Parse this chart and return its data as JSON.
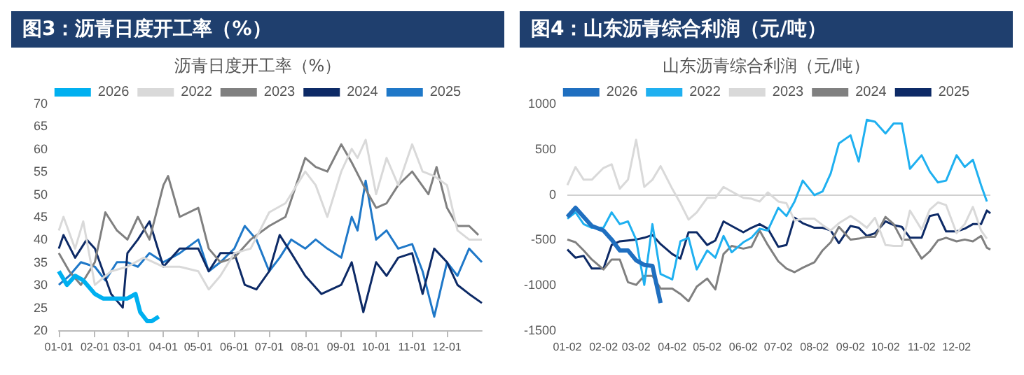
{
  "chart_data": [
    {
      "type": "line",
      "title": "图3：沥青日度开工率（%）",
      "subtitle": "沥青日度开工率（%）",
      "legend": "top",
      "grid": false,
      "marker": "none",
      "line_style": "solid",
      "xlim": [
        "--01-01",
        "--12-31"
      ],
      "xticks": [
        {
          "value": "--01-01",
          "label": "01-01"
        },
        {
          "value": "--02-01",
          "label": "02-01"
        },
        {
          "value": "--03-01",
          "label": "03-01"
        },
        {
          "value": "--04-01",
          "label": "04-01"
        },
        {
          "value": "--05-01",
          "label": "05-01"
        },
        {
          "value": "--06-01",
          "label": "06-01"
        },
        {
          "value": "--07-01",
          "label": "07-01"
        },
        {
          "value": "--08-01",
          "label": "08-01"
        },
        {
          "value": "--09-01",
          "label": "09-01"
        },
        {
          "value": "--10-01",
          "label": "10-01"
        },
        {
          "value": "--11-01",
          "label": "11-01"
        },
        {
          "value": "--12-01",
          "label": "12-01"
        }
      ],
      "ylim": [
        20,
        70
      ],
      "yticks": [
        20,
        25,
        30,
        35,
        40,
        45,
        50,
        55,
        60,
        65,
        70
      ],
      "series": [
        {
          "name": "2026",
          "color": "#00b0f0",
          "x": [
            "--01-01",
            "--01-08",
            "--01-15",
            "--01-22",
            "--02-01",
            "--02-08",
            "--02-15",
            "--02-22",
            "--03-01",
            "--03-08",
            "--03-12",
            "--03-18",
            "--03-22",
            "--03-28"
          ],
          "values": [
            33,
            30,
            32,
            31,
            28,
            27,
            27,
            27,
            27,
            28,
            24,
            22,
            22,
            23
          ]
        },
        {
          "name": "2022",
          "color": "#d9d9d9",
          "x": [
            "--01-01",
            "--01-05",
            "--01-15",
            "--01-22",
            "--02-01",
            "--02-15",
            "--03-01",
            "--03-15",
            "--04-01",
            "--04-15",
            "--05-01",
            "--05-10",
            "--05-20",
            "--06-01",
            "--06-15",
            "--07-01",
            "--07-15",
            "--08-01",
            "--08-10",
            "--08-20",
            "--09-01",
            "--09-10",
            "--09-15",
            "--09-22",
            "--10-01",
            "--10-10",
            "--10-20",
            "--11-01",
            "--11-10",
            "--11-20",
            "--12-01",
            "--12-10",
            "--12-20",
            "--12-31"
          ],
          "values": [
            42,
            45,
            38,
            44,
            30,
            33,
            34,
            36,
            34,
            34,
            33,
            29,
            32,
            37,
            38,
            46,
            48,
            55,
            52,
            45,
            55,
            60,
            58,
            62,
            50,
            58,
            52,
            61,
            55,
            54,
            52,
            42,
            40,
            40
          ]
        },
        {
          "name": "2023",
          "color": "#808080",
          "x": [
            "--01-01",
            "--01-10",
            "--01-20",
            "--02-01",
            "--02-10",
            "--02-20",
            "--03-01",
            "--03-10",
            "--03-20",
            "--04-01",
            "--04-05",
            "--04-15",
            "--05-01",
            "--05-10",
            "--05-20",
            "--06-01",
            "--06-15",
            "--07-01",
            "--07-15",
            "--08-01",
            "--08-10",
            "--08-20",
            "--09-01",
            "--09-10",
            "--09-20",
            "--10-01",
            "--10-10",
            "--10-20",
            "--11-01",
            "--11-15",
            "--11-22",
            "--12-01",
            "--12-10",
            "--12-20",
            "--12-28"
          ],
          "values": [
            37,
            33,
            30,
            35,
            46,
            42,
            40,
            45,
            40,
            52,
            54,
            45,
            47,
            38,
            35,
            36,
            40,
            43,
            45,
            58,
            56,
            55,
            61,
            57,
            52,
            47,
            48,
            52,
            55,
            50,
            56,
            47,
            43,
            43,
            41
          ]
        },
        {
          "name": "2024",
          "color": "#0d2a66",
          "x": [
            "--01-01",
            "--01-05",
            "--01-15",
            "--01-25",
            "--02-01",
            "--02-15",
            "--02-25",
            "--03-01",
            "--03-10",
            "--03-20",
            "--04-01",
            "--04-15",
            "--05-01",
            "--05-10",
            "--05-20",
            "--06-01",
            "--06-10",
            "--06-20",
            "--07-01",
            "--07-10",
            "--07-20",
            "--08-01",
            "--08-15",
            "--09-01",
            "--09-10",
            "--09-20",
            "--10-01",
            "--10-10",
            "--10-20",
            "--11-01",
            "--11-10",
            "--11-20",
            "--12-01",
            "--12-10",
            "--12-20",
            "--12-31"
          ],
          "values": [
            38,
            41,
            36,
            40,
            38,
            28,
            25,
            37,
            40,
            44,
            34,
            38,
            38,
            33,
            37,
            37,
            30,
            29,
            33,
            41,
            37,
            32,
            28,
            30,
            35,
            24,
            35,
            32,
            36,
            37,
            28,
            38,
            35,
            30,
            28,
            26
          ]
        },
        {
          "name": "2025",
          "color": "#1f78c8",
          "x": [
            "--01-01",
            "--01-10",
            "--01-20",
            "--02-01",
            "--02-10",
            "--02-20",
            "--03-01",
            "--03-10",
            "--03-20",
            "--04-01",
            "--04-15",
            "--05-01",
            "--05-10",
            "--05-20",
            "--06-01",
            "--06-10",
            "--06-20",
            "--07-01",
            "--07-10",
            "--07-20",
            "--08-01",
            "--08-10",
            "--08-20",
            "--09-01",
            "--09-10",
            "--09-15",
            "--09-22",
            "--10-01",
            "--10-10",
            "--10-20",
            "--11-01",
            "--11-10",
            "--11-20",
            "--12-01",
            "--12-10",
            "--12-20",
            "--12-31"
          ],
          "values": [
            30,
            32,
            35,
            34,
            31,
            35,
            35,
            34,
            37,
            35,
            37,
            40,
            33,
            35,
            38,
            43,
            40,
            33,
            36,
            40,
            38,
            40,
            38,
            36,
            45,
            42,
            53,
            40,
            42,
            38,
            39,
            33,
            23,
            35,
            32,
            38,
            35
          ]
        }
      ]
    },
    {
      "type": "line",
      "title": "图4：山东沥青综合利润（元/吨）",
      "subtitle": "山东沥青综合利润（元/吨）",
      "legend": "top",
      "grid": false,
      "marker": "none",
      "line_style": "solid",
      "xlim": [
        "--01-02",
        "--12-31"
      ],
      "xticks": [
        {
          "value": "--01-02",
          "label": "01-02"
        },
        {
          "value": "--02-02",
          "label": "02-02"
        },
        {
          "value": "--03-02",
          "label": "03-02"
        },
        {
          "value": "--04-02",
          "label": "04-02"
        },
        {
          "value": "--05-02",
          "label": "05-02"
        },
        {
          "value": "--06-02",
          "label": "06-02"
        },
        {
          "value": "--07-02",
          "label": "07-02"
        },
        {
          "value": "--08-02",
          "label": "08-02"
        },
        {
          "value": "--09-02",
          "label": "09-02"
        },
        {
          "value": "--10-02",
          "label": "10-02"
        },
        {
          "value": "--11-02",
          "label": "11-02"
        },
        {
          "value": "--12-02",
          "label": "12-02"
        }
      ],
      "ylim": [
        -1500,
        1000
      ],
      "yticks": [
        -1500,
        -1000,
        -500,
        0,
        500,
        1000
      ],
      "ref_lines": [
        {
          "axis": "y",
          "value": 0,
          "color": "#d0d0d0"
        }
      ],
      "series": [
        {
          "name": "2026",
          "color": "#1f6fc0",
          "x": [
            "--01-02",
            "--01-09",
            "--01-16",
            "--01-23",
            "--02-02",
            "--02-09",
            "--02-16",
            "--02-23",
            "--03-02",
            "--03-09",
            "--03-16",
            "--03-23"
          ],
          "values": [
            -250,
            -150,
            -250,
            -350,
            -400,
            -500,
            -620,
            -620,
            -730,
            -780,
            -790,
            -1200
          ]
        },
        {
          "name": "2022",
          "color": "#1fb0f0",
          "x": [
            "--01-02",
            "--01-09",
            "--01-16",
            "--01-23",
            "--02-02",
            "--02-09",
            "--02-16",
            "--02-23",
            "--03-02",
            "--03-09",
            "--03-16",
            "--03-23",
            "--04-02",
            "--04-09",
            "--04-16",
            "--04-23",
            "--05-02",
            "--05-09",
            "--05-16",
            "--05-23",
            "--06-02",
            "--06-09",
            "--06-16",
            "--06-23",
            "--07-02",
            "--07-09",
            "--07-16",
            "--07-23",
            "--08-02",
            "--08-09",
            "--08-16",
            "--08-23",
            "--09-02",
            "--09-09",
            "--09-16",
            "--09-23",
            "--10-02",
            "--10-09",
            "--10-16",
            "--10-23",
            "--11-02",
            "--11-09",
            "--11-16",
            "--11-23",
            "--12-02",
            "--12-09",
            "--12-16",
            "--12-23",
            "--12-28"
          ],
          "values": [
            -270,
            -200,
            -330,
            -370,
            -370,
            -200,
            -330,
            -300,
            -500,
            -1000,
            -330,
            -880,
            -940,
            -520,
            -480,
            -830,
            -620,
            -700,
            -460,
            -640,
            -530,
            -480,
            -380,
            -400,
            -150,
            -240,
            -80,
            150,
            -10,
            30,
            230,
            560,
            650,
            360,
            820,
            800,
            670,
            780,
            780,
            280,
            430,
            250,
            130,
            150,
            430,
            300,
            380,
            100,
            -80
          ]
        },
        {
          "name": "2023",
          "color": "#d9d9d9",
          "x": [
            "--01-02",
            "--01-09",
            "--01-16",
            "--01-23",
            "--02-02",
            "--02-09",
            "--02-16",
            "--02-23",
            "--03-02",
            "--03-09",
            "--03-16",
            "--03-23",
            "--04-02",
            "--04-09",
            "--04-16",
            "--04-23",
            "--05-02",
            "--05-09",
            "--05-16",
            "--05-23",
            "--06-02",
            "--06-09",
            "--06-16",
            "--06-23",
            "--07-02",
            "--07-09",
            "--07-16",
            "--07-23",
            "--08-02",
            "--08-09",
            "--08-16",
            "--08-23",
            "--09-02",
            "--09-09",
            "--09-16",
            "--09-23",
            "--10-02",
            "--10-09",
            "--10-16",
            "--10-23",
            "--11-02",
            "--11-09",
            "--11-16",
            "--11-23",
            "--12-02",
            "--12-09",
            "--12-16",
            "--12-23",
            "--12-28"
          ],
          "values": [
            100,
            300,
            160,
            160,
            290,
            330,
            60,
            160,
            600,
            80,
            160,
            310,
            60,
            -100,
            -280,
            -200,
            -40,
            -40,
            80,
            30,
            -40,
            -50,
            -80,
            20,
            -80,
            -100,
            -290,
            -270,
            -270,
            -340,
            -400,
            -320,
            -240,
            -300,
            -370,
            -260,
            -560,
            -570,
            -570,
            -180,
            -390,
            -170,
            -90,
            -120,
            -430,
            -330,
            -140,
            -400,
            -490
          ]
        },
        {
          "name": "2024",
          "color": "#808080",
          "x": [
            "--01-02",
            "--01-09",
            "--01-16",
            "--01-23",
            "--02-02",
            "--02-09",
            "--02-16",
            "--02-23",
            "--03-02",
            "--03-09",
            "--03-16",
            "--03-23",
            "--04-02",
            "--04-09",
            "--04-16",
            "--04-23",
            "--05-02",
            "--05-09",
            "--05-16",
            "--05-23",
            "--06-02",
            "--06-09",
            "--06-16",
            "--06-23",
            "--07-02",
            "--07-09",
            "--07-16",
            "--07-23",
            "--08-02",
            "--08-09",
            "--08-16",
            "--08-23",
            "--09-02",
            "--09-09",
            "--09-16",
            "--09-23",
            "--10-02",
            "--10-09",
            "--10-16",
            "--10-23",
            "--11-02",
            "--11-09",
            "--11-16",
            "--11-23",
            "--12-02",
            "--12-09",
            "--12-16",
            "--12-23",
            "--12-28",
            "--12-31"
          ],
          "values": [
            -500,
            -530,
            -620,
            -720,
            -830,
            -720,
            -720,
            -970,
            -1000,
            -900,
            -900,
            -1040,
            -1040,
            -1100,
            -1180,
            -1020,
            -930,
            -1050,
            -660,
            -570,
            -600,
            -580,
            -400,
            -560,
            -740,
            -820,
            -860,
            -810,
            -750,
            -620,
            -530,
            -360,
            -500,
            -490,
            -470,
            -470,
            -250,
            -330,
            -500,
            -500,
            -710,
            -630,
            -510,
            -480,
            -520,
            -500,
            -520,
            -460,
            -590,
            -610
          ]
        },
        {
          "name": "2025",
          "color": "#0d2a66",
          "x": [
            "--01-02",
            "--01-09",
            "--01-16",
            "--01-23",
            "--02-02",
            "--02-09",
            "--02-16",
            "--02-23",
            "--03-02",
            "--03-09",
            "--03-16",
            "--03-23",
            "--04-02",
            "--04-09",
            "--04-16",
            "--04-23",
            "--05-02",
            "--05-09",
            "--05-16",
            "--05-23",
            "--06-02",
            "--06-09",
            "--06-16",
            "--06-23",
            "--07-02",
            "--07-09",
            "--07-16",
            "--07-23",
            "--08-02",
            "--08-09",
            "--08-16",
            "--08-23",
            "--09-02",
            "--09-09",
            "--09-16",
            "--09-23",
            "--10-02",
            "--10-09",
            "--10-16",
            "--10-23",
            "--11-02",
            "--11-09",
            "--11-16",
            "--11-23",
            "--12-02",
            "--12-09",
            "--12-16",
            "--12-23",
            "--12-28",
            "--12-31"
          ],
          "values": [
            -610,
            -700,
            -680,
            -820,
            -820,
            -560,
            -520,
            -510,
            -500,
            -480,
            -450,
            -550,
            -660,
            -710,
            -420,
            -420,
            -560,
            -510,
            -300,
            -350,
            -420,
            -370,
            -330,
            -380,
            -580,
            -560,
            -260,
            -320,
            -370,
            -370,
            -400,
            -540,
            -350,
            -370,
            -460,
            -430,
            -300,
            -340,
            -360,
            -480,
            -480,
            -240,
            -220,
            -410,
            -410,
            -380,
            -330,
            -330,
            -180,
            -210
          ]
        }
      ]
    }
  ]
}
